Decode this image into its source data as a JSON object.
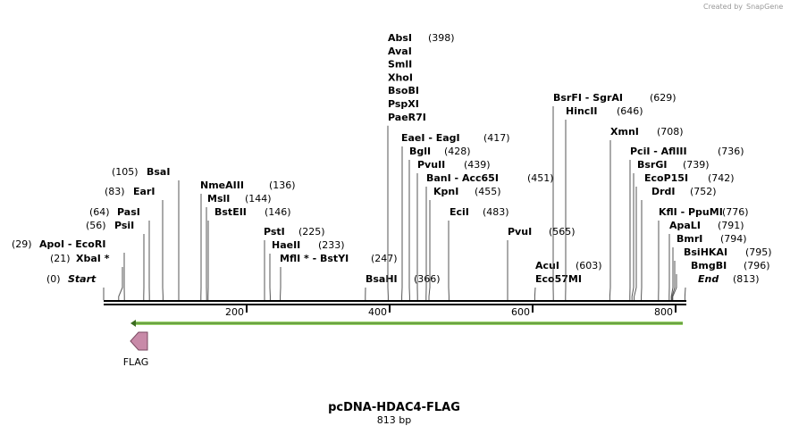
{
  "credit": {
    "text": "Created by",
    "brand": "SnapGene"
  },
  "title": "pcDNA-HDAC4-FLAG",
  "subtitle": "813 bp",
  "ruler": {
    "ticks": [
      200,
      400,
      600,
      800
    ]
  },
  "features": [
    {
      "label": "FLAG"
    }
  ],
  "sites": [
    {
      "names": [
        "Start"
      ],
      "position": "(0)"
    },
    {
      "names": [
        "XbaI *"
      ],
      "position": "(21)"
    },
    {
      "names": [
        "ApoI  -  EcoRI"
      ],
      "position": "(29)"
    },
    {
      "names": [
        "PsiI"
      ],
      "position": "(56)"
    },
    {
      "names": [
        "PasI"
      ],
      "position": "(64)"
    },
    {
      "names": [
        "EarI"
      ],
      "position": "(83)"
    },
    {
      "names": [
        "BsaI"
      ],
      "position": "(105)"
    },
    {
      "names": [
        "NmeAIII"
      ],
      "position": "(136)"
    },
    {
      "names": [
        "MslI"
      ],
      "position": "(144)"
    },
    {
      "names": [
        "BstEII"
      ],
      "position": "(146)"
    },
    {
      "names": [
        "PstI"
      ],
      "position": "(225)"
    },
    {
      "names": [
        "HaeII"
      ],
      "position": "(233)"
    },
    {
      "names": [
        "MflI *  -  BstYI"
      ],
      "position": "(247)"
    },
    {
      "names": [
        "BsaHI"
      ],
      "position": "(366)"
    },
    {
      "names": [
        "AbsI",
        "AvaI",
        "SmlI",
        "XhoI",
        "BsoBI",
        "PspXI",
        "PaeR7I"
      ],
      "position": "(398)"
    },
    {
      "names": [
        "EaeI  -  EagI"
      ],
      "position": "(417)"
    },
    {
      "names": [
        "BglI"
      ],
      "position": "(428)"
    },
    {
      "names": [
        "PvuII"
      ],
      "position": "(439)"
    },
    {
      "names": [
        "BanI  -  Acc65I"
      ],
      "position": "(451)"
    },
    {
      "names": [
        "KpnI"
      ],
      "position": "(455)"
    },
    {
      "names": [
        "EciI"
      ],
      "position": "(483)"
    },
    {
      "names": [
        "PvuI"
      ],
      "position": "(565)"
    },
    {
      "names": [
        "AcuI",
        "Eco57MI"
      ],
      "position": "(603)"
    },
    {
      "names": [
        "BsrFI  -  SgrAI"
      ],
      "position": "(629)"
    },
    {
      "names": [
        "HincII"
      ],
      "position": "(646)"
    },
    {
      "names": [
        "XmnI"
      ],
      "position": "(708)"
    },
    {
      "names": [
        "PciI  -  AflIII"
      ],
      "position": "(736)"
    },
    {
      "names": [
        "BsrGI"
      ],
      "position": "(739)"
    },
    {
      "names": [
        "EcoP15I"
      ],
      "position": "(742)"
    },
    {
      "names": [
        "DrdI"
      ],
      "position": "(752)"
    },
    {
      "names": [
        "KflI  -  PpuMI"
      ],
      "position": "(776)"
    },
    {
      "names": [
        "ApaLI"
      ],
      "position": "(791)"
    },
    {
      "names": [
        "BmrI"
      ],
      "position": "(794)"
    },
    {
      "names": [
        "BsiHKAI"
      ],
      "position": "(795)"
    },
    {
      "names": [
        "BmgBI"
      ],
      "position": "(796)"
    },
    {
      "names": [
        "End"
      ],
      "position": "(813)"
    }
  ]
}
